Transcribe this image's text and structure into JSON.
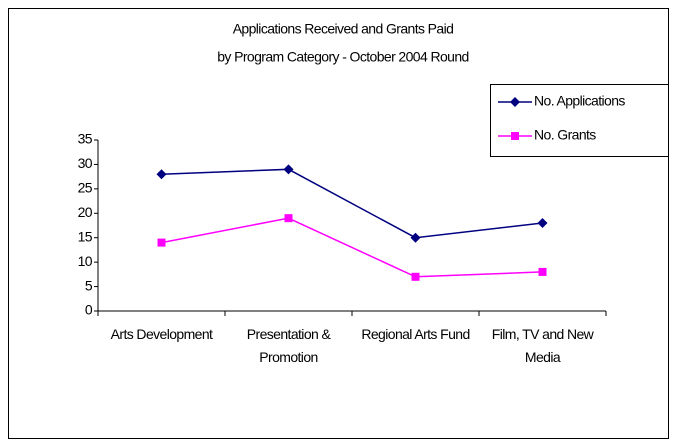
{
  "chart_data": {
    "type": "line",
    "title": "Applications Received and Grants Paid",
    "subtitle": "by Program Category - October 2004 Round",
    "categories": [
      "Arts Development",
      "Presentation & Promotion",
      "Regional Arts Fund",
      "Film, TV and New Media"
    ],
    "series": [
      {
        "name": "No. Applications",
        "color": "#000080",
        "marker": "diamond",
        "values": [
          28,
          29,
          15,
          18
        ]
      },
      {
        "name": "No. Grants",
        "color": "#ff00ff",
        "marker": "square",
        "values": [
          14,
          19,
          7,
          8
        ]
      }
    ],
    "ylim": [
      0,
      35
    ],
    "yticks": [
      0,
      5,
      10,
      15,
      20,
      25,
      30,
      35
    ],
    "grid": false,
    "legend": "right"
  }
}
